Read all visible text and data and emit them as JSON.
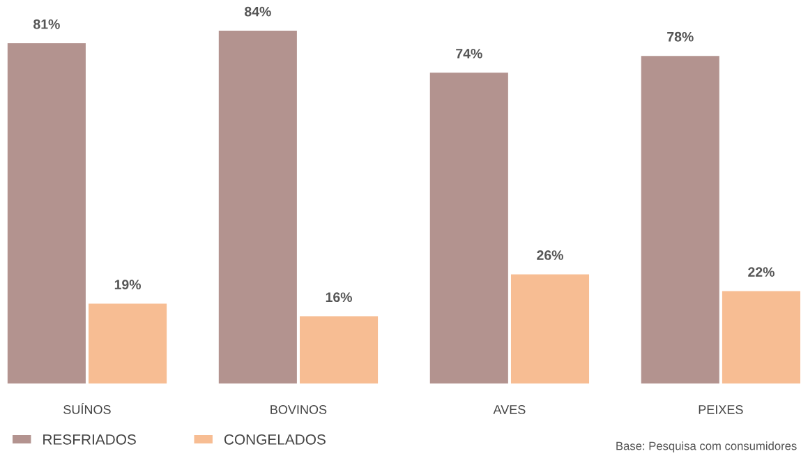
{
  "chart_data": {
    "type": "bar",
    "categories": [
      "SUÍNOS",
      "BOVINOS",
      "AVES",
      "PEIXES"
    ],
    "series": [
      {
        "name": "RESFRIADOS",
        "color": "#b3938f",
        "values": [
          81,
          84,
          74,
          78
        ],
        "value_labels": [
          "81%",
          "84%",
          "74%",
          "78%"
        ]
      },
      {
        "name": "CONGELADOS",
        "color": "#f7bd93",
        "values": [
          19,
          16,
          26,
          22
        ],
        "value_labels": [
          "19%",
          "16%",
          "26%",
          "22%"
        ]
      }
    ],
    "legend": "bottom left",
    "grid": false,
    "annotations": [
      "Base: Pesquisa com consumidores"
    ]
  }
}
